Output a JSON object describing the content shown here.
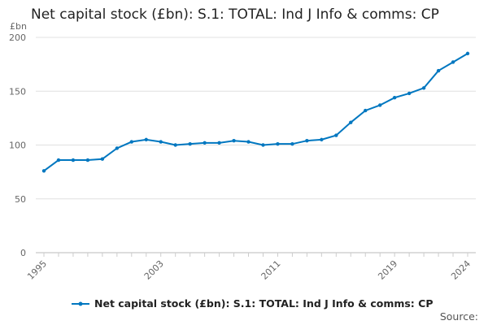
{
  "chart_data": {
    "type": "line",
    "title": "Net capital stock (£bn): S.1: TOTAL: Ind J Info & comms: CP",
    "ylabel": "£bn",
    "xlabel": "",
    "ylim": [
      0,
      200
    ],
    "yticks": [
      0,
      50,
      100,
      150,
      200
    ],
    "xticks": [
      "1995",
      "2003",
      "2011",
      "2019",
      "2024"
    ],
    "grid": true,
    "legend_position": "bottom",
    "color": "#0077c0",
    "series": [
      {
        "name": "Net capital stock (£bn): S.1: TOTAL: Ind J Info & comms: CP",
        "x": [
          1995,
          1996,
          1997,
          1998,
          1999,
          2000,
          2001,
          2002,
          2003,
          2004,
          2005,
          2006,
          2007,
          2008,
          2009,
          2010,
          2011,
          2012,
          2013,
          2014,
          2015,
          2016,
          2017,
          2018,
          2019,
          2020,
          2021,
          2022,
          2023,
          2024
        ],
        "values": [
          76,
          86,
          86,
          86,
          87,
          97,
          103,
          105,
          103,
          100,
          101,
          102,
          102,
          104,
          103,
          100,
          101,
          101,
          104,
          105,
          109,
          121,
          132,
          137,
          144,
          148,
          153,
          169,
          177,
          185
        ]
      }
    ]
  },
  "source_label": "Source:"
}
